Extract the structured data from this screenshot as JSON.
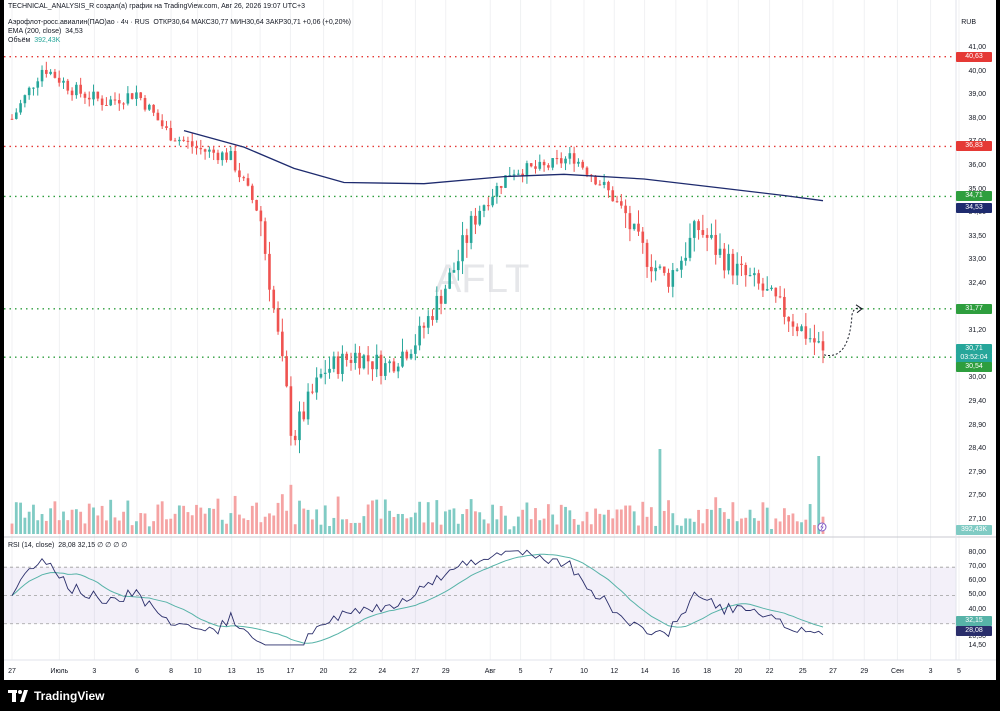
{
  "attribution": "TECHNICAL_ANALYSIS_R создал(а) график на TradingView.com, Авг 26, 2026 19:07 UTC+3",
  "legend": {
    "symbol": "Аэрофлот-росс.авиалин(ПАО)ао · 4ч · RUS",
    "ohlc": "ОТКР30,64  МАКС30,77  МИН30,64  ЗАКР30,71  +0,06 (+0,20%)",
    "ema_label": "EMA (200, close)",
    "ema_value": "34,53",
    "volume_label": "Объём",
    "volume_value": "392,43K",
    "rsi_label": "RSI (14, close)",
    "rsi_values": "28,08  32,15  ∅  ∅  ∅  ∅"
  },
  "watermark": "AFLT",
  "currency": "RUB",
  "brand": "TradingView",
  "colors": {
    "up": "#26a69a",
    "down": "#ef5350",
    "ema": "#1e2b6e",
    "rsi": "#2a2e6b",
    "rsi_ma": "#57b3a8",
    "red_level": "#e53935",
    "green_level": "#2e9e3e",
    "rsi_band": "#7e57c2"
  },
  "chart_data": {
    "type": "candlestick",
    "symbol": "AFLT",
    "timeframe": "4ч",
    "y_ticks": [
      "41,00",
      "40,00",
      "39,00",
      "38,00",
      "37,00",
      "36,00",
      "35,00",
      "34,00",
      "33,50",
      "33,00",
      "32,40",
      "31,80",
      "31,20",
      "30,60",
      "30,00",
      "29,40",
      "28,90",
      "28,40",
      "27,90",
      "27,50",
      "27,10"
    ],
    "x_ticks": [
      {
        "label": "27",
        "frac": 0.0
      },
      {
        "label": "Июль",
        "frac": 0.05
      },
      {
        "label": "3",
        "frac": 0.087
      },
      {
        "label": "6",
        "frac": 0.132
      },
      {
        "label": "8",
        "frac": 0.168
      },
      {
        "label": "10",
        "frac": 0.196
      },
      {
        "label": "13",
        "frac": 0.232
      },
      {
        "label": "15",
        "frac": 0.262
      },
      {
        "label": "17",
        "frac": 0.294
      },
      {
        "label": "20",
        "frac": 0.329
      },
      {
        "label": "22",
        "frac": 0.36
      },
      {
        "label": "24",
        "frac": 0.391
      },
      {
        "label": "27",
        "frac": 0.426
      },
      {
        "label": "29",
        "frac": 0.458
      },
      {
        "label": "Авг",
        "frac": 0.505
      },
      {
        "label": "5",
        "frac": 0.537
      },
      {
        "label": "7",
        "frac": 0.569
      },
      {
        "label": "10",
        "frac": 0.604
      },
      {
        "label": "12",
        "frac": 0.636
      },
      {
        "label": "14",
        "frac": 0.668
      },
      {
        "label": "16",
        "frac": 0.701
      },
      {
        "label": "18",
        "frac": 0.734
      },
      {
        "label": "20",
        "frac": 0.767
      },
      {
        "label": "22",
        "frac": 0.8
      },
      {
        "label": "25",
        "frac": 0.835
      },
      {
        "label": "27",
        "frac": 0.867
      },
      {
        "label": "29",
        "frac": 0.9
      },
      {
        "label": "Сен",
        "frac": 0.935
      },
      {
        "label": "3",
        "frac": 0.97
      },
      {
        "label": "5",
        "frac": 1.0
      }
    ],
    "levels": [
      {
        "price": 40.63,
        "label": "40,63",
        "style": "red"
      },
      {
        "price": 36.83,
        "label": "36,83",
        "style": "red"
      },
      {
        "price": 34.71,
        "label": "34,71",
        "style": "green"
      },
      {
        "price": 31.77,
        "label": "31,77",
        "style": "green"
      },
      {
        "price": 30.54,
        "label": "30,54",
        "style": "green"
      }
    ],
    "last_price": {
      "value": 30.71,
      "label": "30,71",
      "countdown": "03:52:04"
    },
    "ema_last": {
      "value": 34.53,
      "label": "34,53"
    },
    "volume_last": "392,43K",
    "rsi_ticks": [
      "80,00",
      "70,00",
      "60,00",
      "50,00",
      "40,00",
      "30,00",
      "20,50",
      "14,50"
    ],
    "rsi_last": {
      "rsi": "28,08",
      "ma": "32,15"
    },
    "key_closes": [
      {
        "x": "27",
        "close": 38.0
      },
      {
        "x": "Июль",
        "close": 40.2
      },
      {
        "x": "3",
        "close": 39.2
      },
      {
        "x": "6",
        "close": 38.7
      },
      {
        "x": "8",
        "close": 39.1
      },
      {
        "x": "10",
        "close": 37.4
      },
      {
        "x": "13",
        "close": 36.7
      },
      {
        "x": "15",
        "close": 36.4
      },
      {
        "x": "16",
        "close": 33.8
      },
      {
        "x": "17",
        "close": 28.6
      },
      {
        "x": "20",
        "close": 30.2
      },
      {
        "x": "22",
        "close": 30.6
      },
      {
        "x": "24",
        "close": 30.3
      },
      {
        "x": "27",
        "close": 31.0
      },
      {
        "x": "29",
        "close": 32.5
      },
      {
        "x": "Авг",
        "close": 34.2
      },
      {
        "x": "5",
        "close": 35.8
      },
      {
        "x": "7",
        "close": 35.9
      },
      {
        "x": "10",
        "close": 36.4
      },
      {
        "x": "12",
        "close": 35.1
      },
      {
        "x": "14",
        "close": 33.4
      },
      {
        "x": "16",
        "close": 32.5
      },
      {
        "x": "18",
        "close": 33.7
      },
      {
        "x": "20",
        "close": 32.9
      },
      {
        "x": "22",
        "close": 32.3
      },
      {
        "x": "25",
        "close": 31.5
      },
      {
        "x": "26",
        "close": 30.71
      }
    ]
  }
}
